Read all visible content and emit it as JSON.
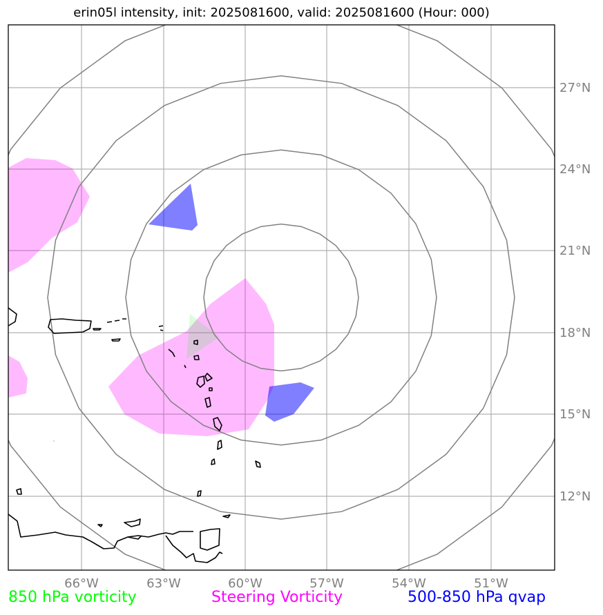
{
  "title": "erin05l intensity, init: 2025081600, valid: 2025081600 (Hour: 000)",
  "map": {
    "lon_ticks": [
      "66°W",
      "63°W",
      "60°W",
      "57°W",
      "54°W",
      "51°W"
    ],
    "lat_ticks": [
      "27°N",
      "24°N",
      "21°N",
      "18°N",
      "15°N",
      "12°N"
    ],
    "lon_range": [
      -68.7,
      -48.6
    ],
    "lat_range": [
      9.3,
      29.3
    ],
    "range_rings": 4,
    "grid": true,
    "colors": {
      "gridline": "#b0b0b0",
      "ring": "#808080",
      "coastline": "#000000",
      "vorticity_850": "#00ff00",
      "steering_vorticity": "#ff00ff",
      "qvap_500_850": "#0000ff"
    }
  },
  "legend": [
    {
      "label": "850 hPa vorticity",
      "color": "#00ff00"
    },
    {
      "label": "Steering Vorticity",
      "color": "#ff00ff"
    },
    {
      "label": "500-850 hPa qvap",
      "color": "#0000ff"
    }
  ]
}
